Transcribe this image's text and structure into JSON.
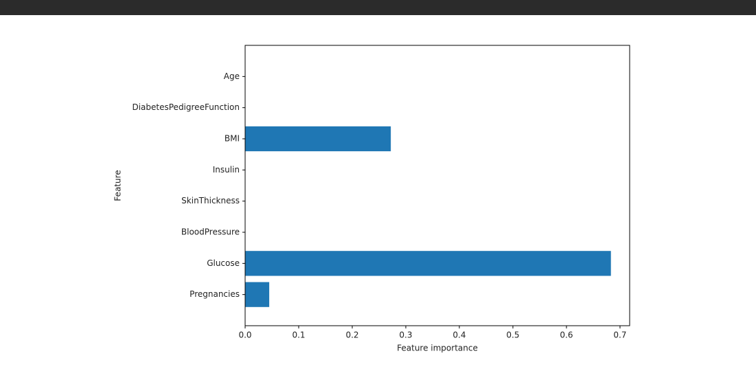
{
  "chart_data": {
    "type": "barh",
    "xlabel": "Feature importance",
    "ylabel": "Feature",
    "categories": [
      "Pregnancies",
      "Glucose",
      "BloodPressure",
      "SkinThickness",
      "Insulin",
      "BMI",
      "DiabetesPedigreeFunction",
      "Age"
    ],
    "values": [
      0.045,
      0.683,
      0,
      0,
      0,
      0.272,
      0,
      0
    ],
    "color": "#1f77b4",
    "xlim": [
      0,
      0.718
    ],
    "xticks": [
      {
        "value": 0,
        "label": "0.0"
      },
      0.1,
      0.2,
      0.3,
      0.4,
      0.5,
      0.6,
      0.7
    ],
    "ylim": [
      -1,
      8
    ],
    "grid": false
  }
}
